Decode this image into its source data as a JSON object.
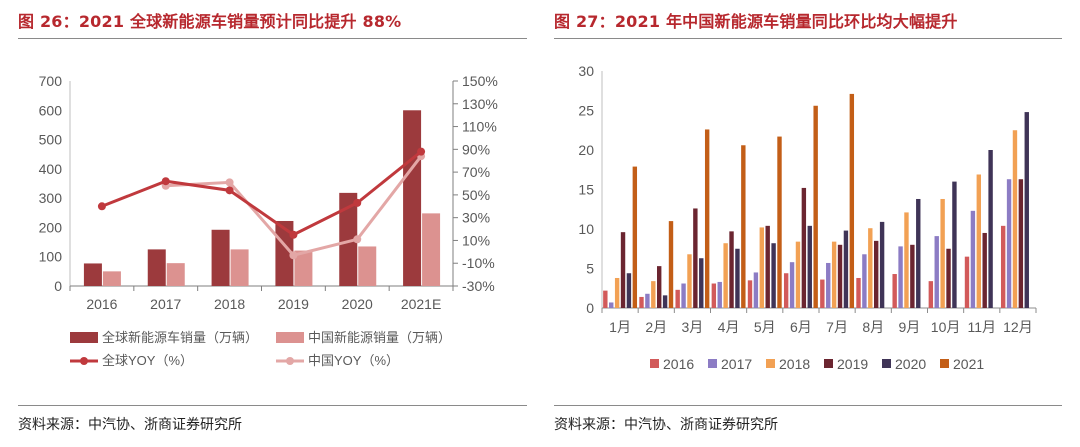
{
  "figures": [
    {
      "title": "图 26：2021 全球新能源车销量预计同比提升 88%",
      "source": "资料来源：中汽协、浙商证券研究所"
    },
    {
      "title": "图 27：2021 年中国新能源车销量同比环比均大幅提升",
      "source": "资料来源：中汽协、浙商证券研究所"
    }
  ],
  "colors": {
    "title": "#b7282e",
    "global_bar": "#9c3a3d",
    "china_bar": "#dc9290",
    "global_line": "#c0393d",
    "china_line": "#e3a7a6",
    "s2016": "#d25a5a",
    "s2017": "#8c7cc4",
    "s2018": "#f2a154",
    "s2019": "#6b2530",
    "s2020": "#3f3457",
    "s2021": "#c35e17"
  },
  "chart_data": [
    {
      "type": "bar+line",
      "title": "2021 全球新能源车销量预计同比提升 88%",
      "categories": [
        "2016",
        "2017",
        "2018",
        "2019",
        "2020",
        "2021E"
      ],
      "left_axis": {
        "ylim": [
          0,
          700
        ],
        "ticks": [
          "0",
          "100",
          "200",
          "300",
          "400",
          "500",
          "600",
          "700"
        ]
      },
      "right_axis": {
        "ylim": [
          -30,
          150
        ],
        "ticks": [
          "-30%",
          "-10%",
          "10%",
          "30%",
          "50%",
          "70%",
          "90%",
          "110%",
          "130%",
          "150%"
        ]
      },
      "bar_series": [
        {
          "name": "全球新能源车销量（万辆）",
          "axis": "left",
          "values": [
            77,
            125,
            192,
            222,
            318,
            600
          ]
        },
        {
          "name": "中国新能源销量（万辆）",
          "axis": "left",
          "values": [
            50,
            78,
            125,
            121,
            135,
            248
          ]
        }
      ],
      "line_series": [
        {
          "name": "全球YOY（%）",
          "axis": "right",
          "values": [
            40,
            62,
            54,
            15,
            43,
            88
          ]
        },
        {
          "name": "中国YOY（%）",
          "axis": "right",
          "values": [
            null,
            58,
            61,
            -3,
            11,
            84
          ]
        }
      ]
    },
    {
      "type": "bar",
      "title": "2021 年中国新能源车销量同比环比均大幅提升",
      "categories": [
        "1月",
        "2月",
        "3月",
        "4月",
        "5月",
        "6月",
        "7月",
        "8月",
        "9月",
        "10月",
        "11月",
        "12月"
      ],
      "ylim": [
        0,
        30
      ],
      "yticks": [
        "0",
        "5",
        "10",
        "15",
        "20",
        "25",
        "30"
      ],
      "series": [
        {
          "name": "2016",
          "values": [
            2.2,
            1.4,
            2.3,
            3.1,
            3.5,
            4.4,
            3.6,
            3.8,
            4.3,
            3.4,
            6.5,
            10.4
          ]
        },
        {
          "name": "2017",
          "values": [
            0.7,
            1.8,
            3.1,
            3.3,
            4.5,
            5.8,
            5.7,
            6.8,
            7.8,
            9.1,
            12.3,
            16.3
          ]
        },
        {
          "name": "2018",
          "values": [
            3.8,
            3.4,
            6.8,
            8.2,
            10.2,
            8.4,
            8.4,
            10.1,
            12.1,
            13.8,
            16.9,
            22.5
          ]
        },
        {
          "name": "2019",
          "values": [
            9.6,
            5.3,
            12.6,
            9.7,
            10.4,
            15.2,
            8.0,
            8.5,
            8.0,
            7.5,
            9.5,
            16.3
          ]
        },
        {
          "name": "2020",
          "values": [
            4.4,
            1.6,
            6.3,
            7.5,
            8.2,
            10.4,
            9.8,
            10.9,
            13.8,
            16.0,
            20.0,
            24.8
          ]
        },
        {
          "name": "2021",
          "values": [
            17.9,
            11.0,
            22.6,
            20.6,
            21.7,
            25.6,
            27.1,
            null,
            null,
            null,
            null,
            null
          ]
        }
      ]
    }
  ]
}
